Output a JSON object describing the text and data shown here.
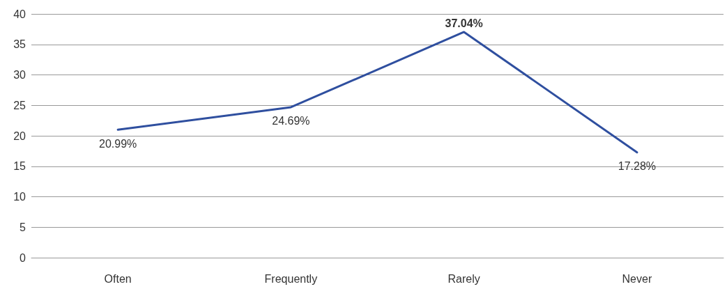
{
  "chart_data": {
    "type": "line",
    "categories": [
      "Often",
      "Frequently",
      "Rarely",
      "Never"
    ],
    "series": [
      {
        "color": "#2f4f9f",
        "values": [
          20.99,
          24.69,
          37.04,
          17.28
        ],
        "value_labels": [
          "20.99%",
          "24.69%",
          "37.04%",
          "17.28%"
        ]
      }
    ],
    "ylim": [
      0,
      40
    ],
    "yticks": [
      0,
      5,
      10,
      15,
      20,
      25,
      30,
      35,
      40
    ],
    "grid": "y",
    "marker": "none",
    "line_style": "solid"
  }
}
